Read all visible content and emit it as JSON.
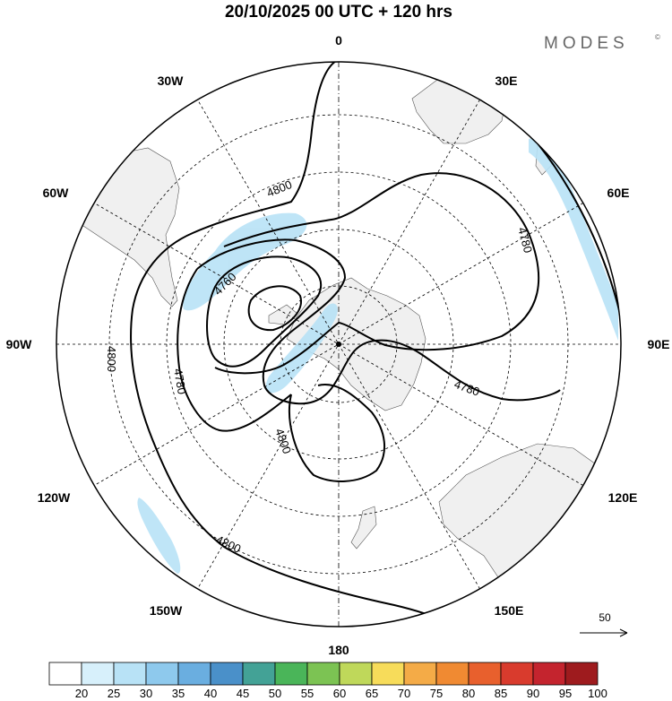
{
  "title": "20/10/2025  00 UTC  + 120 hrs",
  "brand": {
    "name": "MODES",
    "mark": "©"
  },
  "longitude_labels": {
    "lon_0": "0",
    "lon_30E": "30E",
    "lon_60E": "60E",
    "lon_90E": "90E",
    "lon_120E": "120E",
    "lon_150E": "150E",
    "lon_180": "180",
    "lon_150W": "150W",
    "lon_120W": "120W",
    "lon_90W": "90W",
    "lon_60W": "60W",
    "lon_30W": "30W"
  },
  "contours": {
    "c4800_top": "4800",
    "c4800_left": "4800",
    "c4800_inner": "4800",
    "c4800_bottom": "4800",
    "c4780_right": "4780",
    "c4780_left": "4780",
    "c4780_lower": "4780",
    "c4760": "4760"
  },
  "reference_vector": {
    "label": "50"
  },
  "colorbar": {
    "labels": [
      "20",
      "25",
      "30",
      "35",
      "40",
      "45",
      "50",
      "55",
      "60",
      "65",
      "70",
      "75",
      "80",
      "85",
      "90",
      "95",
      "100"
    ],
    "colors": [
      "#ffffff",
      "#d7f0fb",
      "#b8e2f6",
      "#8ec9ed",
      "#6aaee0",
      "#4a90c9",
      "#43a296",
      "#4ab559",
      "#7cc353",
      "#bfd85a",
      "#f7dc5a",
      "#f4ab47",
      "#f08a32",
      "#e8602d",
      "#d93b2d",
      "#c4242e",
      "#9e1b1e"
    ]
  },
  "colors": {
    "land": "#f0f0f0",
    "jet_fill": "#b8e2f6",
    "contour": "#000000",
    "grid": "#000000"
  }
}
